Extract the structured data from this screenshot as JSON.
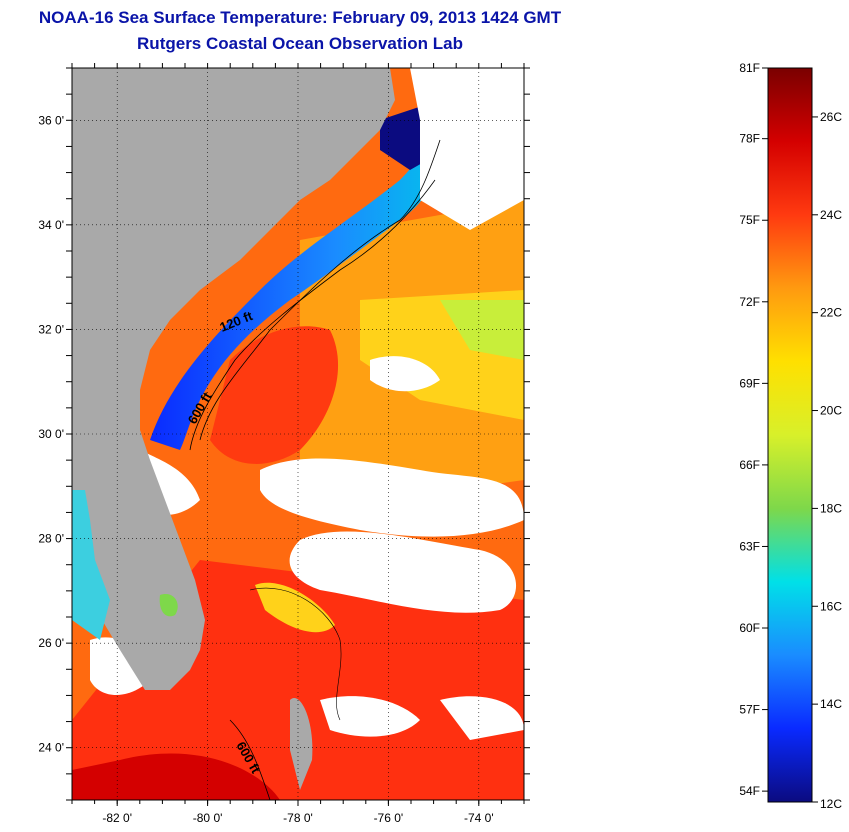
{
  "header": {
    "title": "NOAA-16 Sea Surface Temperature:  February 09, 2013 1424 GMT",
    "subtitle": "Rutgers Coastal Ocean Observation Lab"
  },
  "map": {
    "lon_range": [
      -83,
      -73
    ],
    "lat_range": [
      23,
      37
    ],
    "lon_ticks": [
      "-82 0'",
      "-80 0'",
      "-78 0'",
      "-76 0'",
      "-74 0'"
    ],
    "lat_ticks": [
      "24 0'",
      "26 0'",
      "28 0'",
      "30 0'",
      "32 0'",
      "34 0'",
      "36 0'"
    ],
    "contour_labels": [
      "120 ft",
      "600 ft",
      "600 ft"
    ],
    "colors": {
      "land": "#a9a9a9",
      "cloud": "#ffffff",
      "frame": "#000000",
      "title": "#0a14a8"
    }
  },
  "colorbar": {
    "fahrenheit_labels": [
      "81F",
      "78F",
      "75F",
      "72F",
      "69F",
      "66F",
      "63F",
      "60F",
      "57F",
      "54F"
    ],
    "celsius_labels": [
      "26C",
      "24C",
      "22C",
      "20C",
      "18C",
      "16C",
      "14C",
      "12C"
    ],
    "range_celsius": [
      12,
      27
    ],
    "colors": [
      "#0b0b80",
      "#0a2aff",
      "#1a8cff",
      "#00e0e8",
      "#7ed84a",
      "#d8f02a",
      "#ffe000",
      "#ff9a10",
      "#ff3a10",
      "#d40000",
      "#7a0000"
    ]
  }
}
